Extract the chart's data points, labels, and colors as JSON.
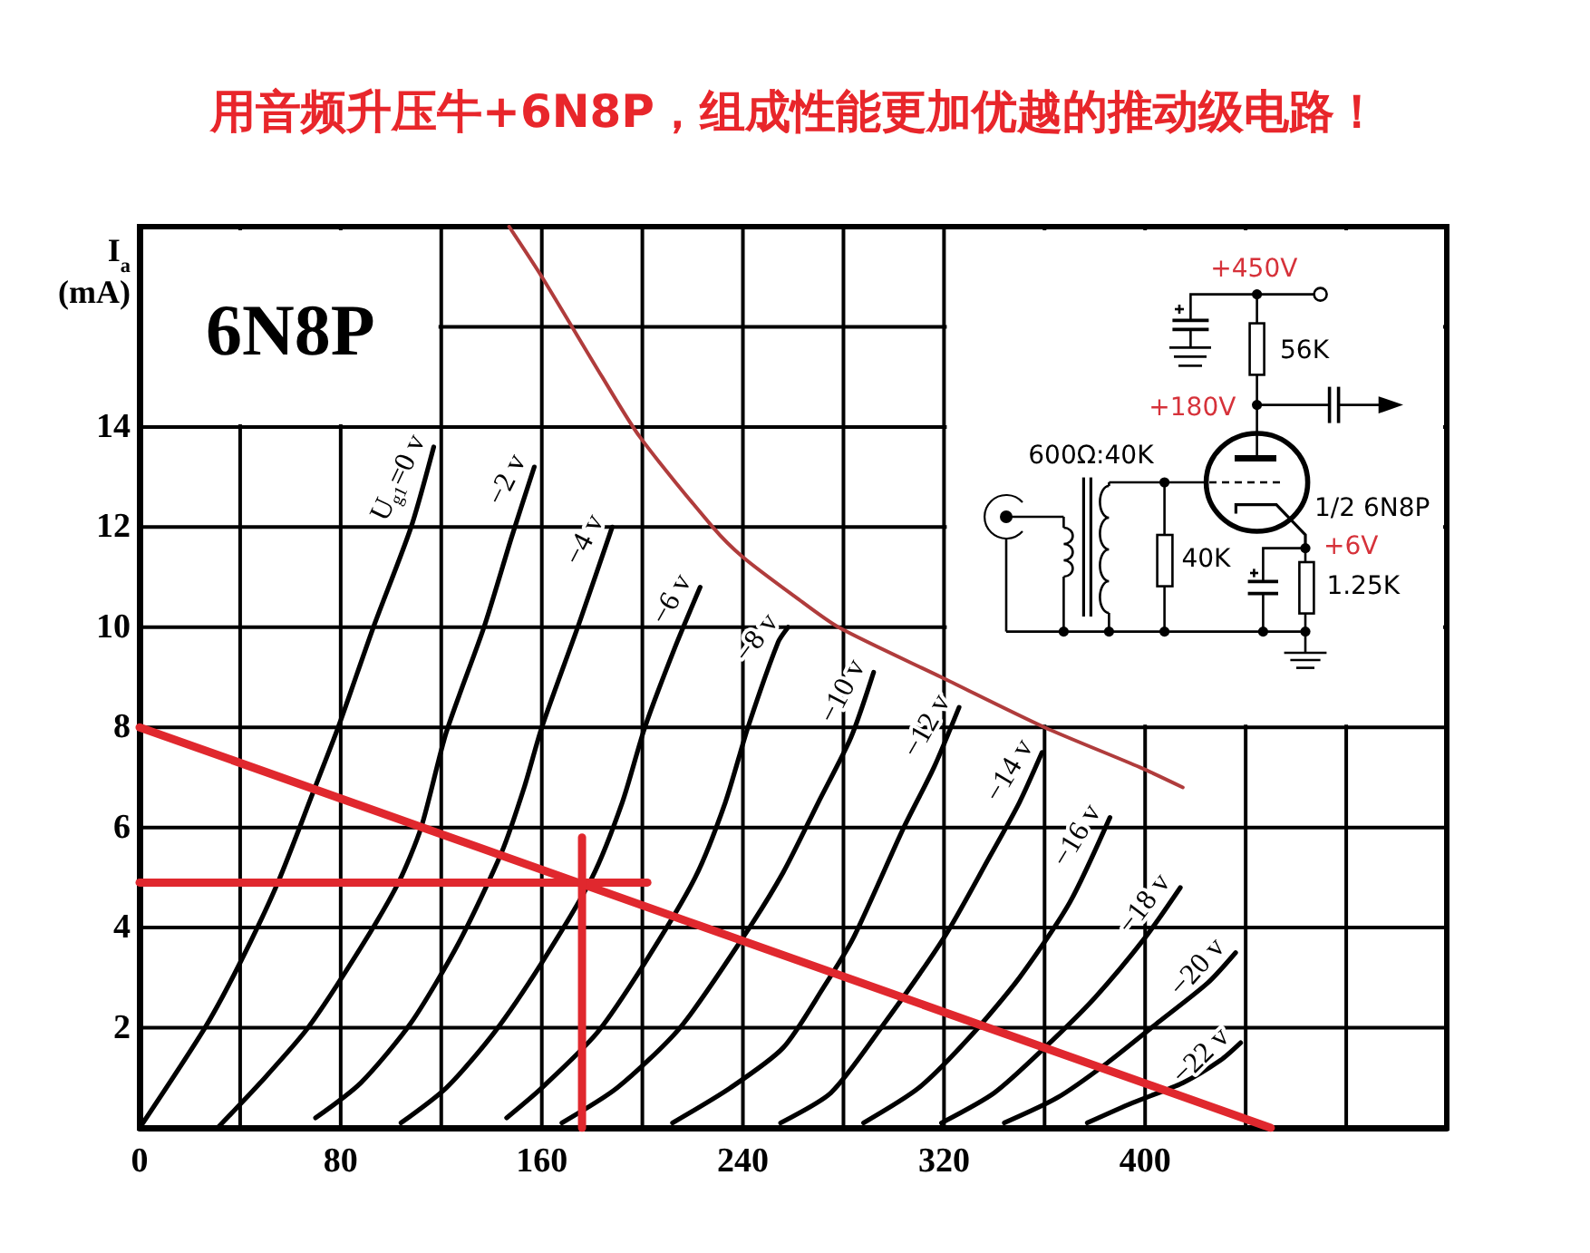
{
  "chart_data": {
    "type": "line",
    "title": "用音频升压牛+6N8P，组成性能更加优越的推动级电路！",
    "ylabel": "I$_{a}$ (mA)",
    "xlim": [
      0,
      520
    ],
    "ylim": [
      0,
      18
    ],
    "xticks": [
      0,
      {
        "value": 40,
        "label": null
      },
      80,
      {
        "value": 120,
        "label": null
      },
      160,
      {
        "value": 200,
        "label": null
      },
      240,
      {
        "value": 280,
        "label": null
      },
      320,
      {
        "value": 360,
        "label": null
      },
      400,
      {
        "value": 440,
        "label": null
      },
      {
        "value": 480,
        "label": null
      },
      {
        "value": 520,
        "label": null
      }
    ],
    "yticks": [
      {
        "value": 0,
        "label": null
      },
      2,
      4,
      6,
      8,
      10,
      12,
      14,
      {
        "value": 16,
        "label": null
      },
      {
        "value": 18,
        "label": null
      }
    ],
    "grid": true,
    "annotations": [
      "6N8P",
      "+450V",
      "56K",
      "+180V",
      "600Ω:40K",
      "40K",
      "1/2 6N8P",
      "+6V",
      "1.25K"
    ],
    "series": [
      {
        "name": "U$_{g1}$=0 v",
        "color": "#000000",
        "x": [
          0,
          26,
          40,
          55,
          69,
          79,
          93,
          108,
          117
        ],
        "values": [
          0,
          2,
          3.3,
          4.9,
          6.7,
          8,
          10,
          12,
          13.6
        ]
      },
      {
        "name": "−2 v",
        "color": "#000000",
        "x": [
          31,
          48,
          67,
          88,
          103,
          112,
          122,
          137,
          148,
          157
        ],
        "values": [
          0,
          0.9,
          2,
          3.6,
          4.9,
          6,
          7.9,
          10,
          11.8,
          13.2
        ]
      },
      {
        "name": "−4 v",
        "color": "#000000",
        "x": [
          70,
          88,
          108,
          127,
          144,
          153,
          160,
          175,
          188
        ],
        "values": [
          0.2,
          0.9,
          2.1,
          3.7,
          5.5,
          6.8,
          8,
          10.1,
          12
        ]
      },
      {
        "name": "−6 v",
        "color": "#000000",
        "x": [
          104,
          122,
          141,
          160,
          180,
          192,
          201,
          213,
          223
        ],
        "values": [
          0.1,
          0.8,
          1.9,
          3.3,
          5,
          6.5,
          8,
          9.6,
          10.8
        ]
      },
      {
        "name": "−8 v",
        "color": "#000000",
        "x": [
          146,
          160,
          182,
          201,
          221,
          233,
          242,
          254,
          258
        ],
        "values": [
          0.2,
          0.8,
          1.9,
          3.3,
          5,
          6.5,
          8,
          9.7,
          10
        ]
      },
      {
        "name": "−10 v",
        "color": "#000000",
        "x": [
          168,
          190,
          215,
          240,
          256,
          270,
          283,
          292
        ],
        "values": [
          0.1,
          0.8,
          2,
          3.8,
          5.1,
          6.5,
          7.8,
          9.1
        ]
      },
      {
        "name": "−12 v",
        "color": "#000000",
        "x": [
          212,
          235,
          256,
          272,
          284,
          304,
          316,
          326
        ],
        "values": [
          0.1,
          0.8,
          1.6,
          2.8,
          3.8,
          6,
          7.2,
          8.4
        ]
      },
      {
        "name": "−14 v",
        "color": "#000000",
        "x": [
          255,
          275,
          295,
          320,
          338,
          350,
          359
        ],
        "values": [
          0.1,
          0.7,
          2,
          3.8,
          5.4,
          6.5,
          7.5
        ]
      },
      {
        "name": "−16 v",
        "color": "#000000",
        "x": [
          288,
          310,
          330,
          350,
          370,
          386
        ],
        "values": [
          0.1,
          0.8,
          1.8,
          3,
          4.5,
          6.2
        ]
      },
      {
        "name": "−18 v",
        "color": "#000000",
        "x": [
          319,
          340,
          360,
          380,
          400,
          414
        ],
        "values": [
          0.1,
          0.7,
          1.6,
          2.6,
          3.8,
          4.8
        ]
      },
      {
        "name": "−20 v",
        "color": "#000000",
        "x": [
          344,
          365,
          385,
          405,
          425,
          436
        ],
        "values": [
          0.1,
          0.6,
          1.3,
          2.1,
          2.9,
          3.5
        ]
      },
      {
        "name": "−22 v",
        "color": "#000000",
        "x": [
          377,
          395,
          415,
          430,
          438
        ],
        "values": [
          0.1,
          0.5,
          0.9,
          1.35,
          1.7
        ]
      },
      {
        "color": "#b03c3c",
        "x": [
          147,
          160,
          184,
          199,
          228,
          240,
          261,
          278,
          319,
          360,
          398,
          415
        ],
        "values": [
          18,
          17,
          15,
          13.8,
          12,
          11.4,
          10.6,
          10,
          9,
          8,
          7.2,
          6.8
        ]
      },
      {
        "color": "#e0282e",
        "x": [
          0,
          450
        ],
        "values": [
          8,
          0
        ]
      },
      {
        "color": "#e0282e",
        "x": [
          0,
          202
        ],
        "values": [
          4.9,
          4.9
        ]
      },
      {
        "color": "#e0282e",
        "x": [
          176,
          176
        ],
        "values": [
          0,
          5.8
        ]
      }
    ]
  }
}
